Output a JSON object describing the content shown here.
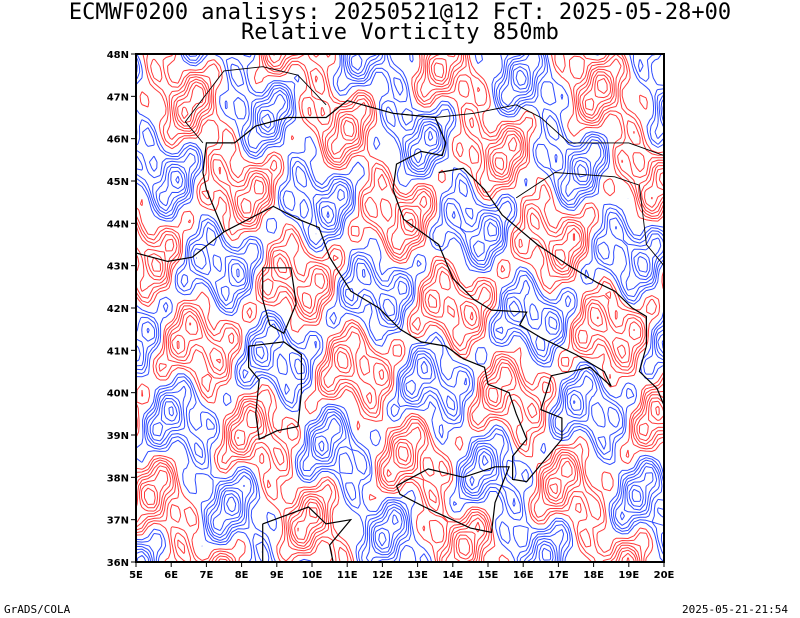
{
  "header": {
    "line1": "ECMWF0200 analisys: 20250521@12 FcT: 2025-05-28+00",
    "line2": "Relative Vorticity 850mb"
  },
  "map": {
    "lat_labels": [
      "48N",
      "47N",
      "46N",
      "45N",
      "44N",
      "43N",
      "42N",
      "41N",
      "40N",
      "39N",
      "38N",
      "37N",
      "36N"
    ],
    "lon_labels": [
      "5E",
      "6E",
      "7E",
      "8E",
      "9E",
      "10E",
      "11E",
      "12E",
      "13E",
      "14E",
      "15E",
      "16E",
      "17E",
      "18E",
      "19E",
      "20E"
    ],
    "lon_range": [
      5,
      20
    ],
    "lat_range": [
      36,
      48
    ],
    "colors": {
      "positive": "#ff3a3a",
      "negative": "#2f4cff",
      "coast": "#000000"
    }
  },
  "footer": {
    "left": "GrADS/COLA",
    "right": "2025-05-21-21:54"
  }
}
